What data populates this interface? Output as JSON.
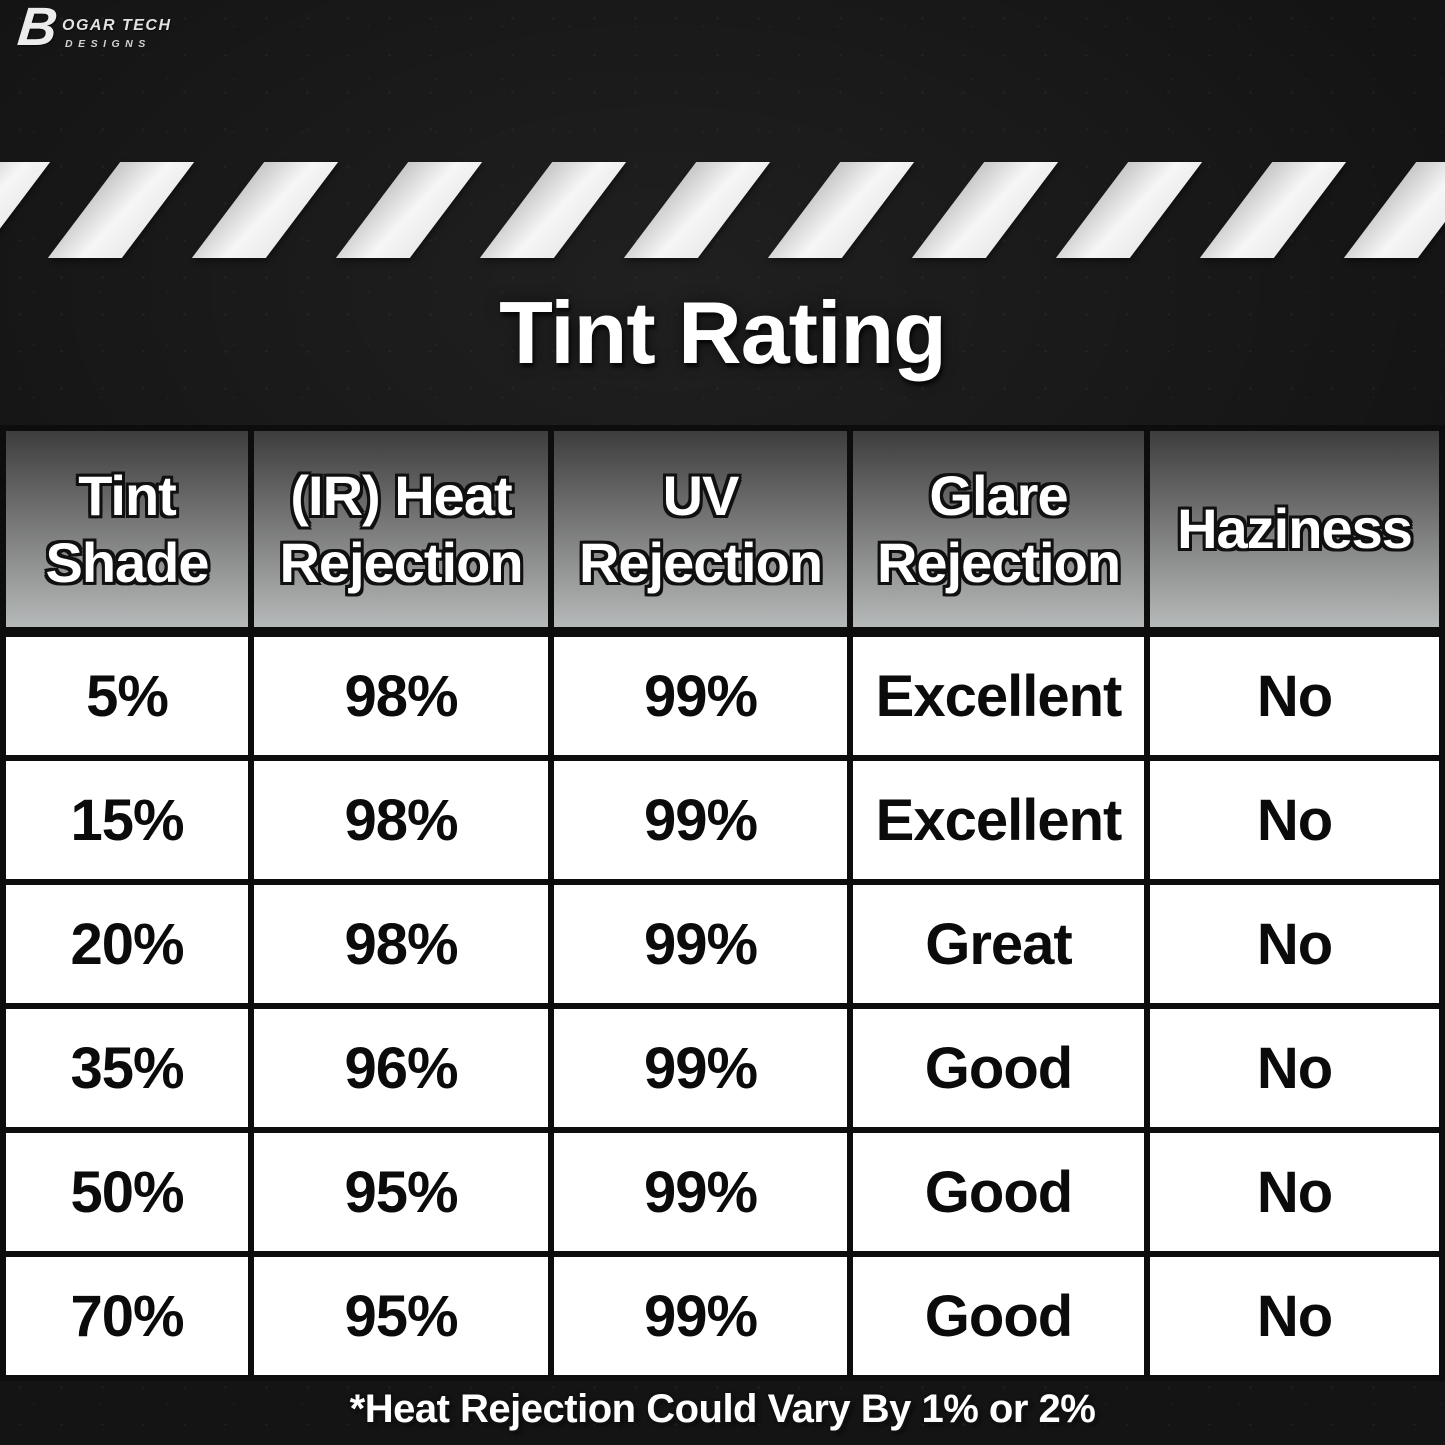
{
  "brand": {
    "b_glyph": "B",
    "name_line1": "OGAR TECH",
    "name_line2": "DESIGNS"
  },
  "chart_data": {
    "type": "table",
    "title": "Tint Rating",
    "columns": [
      "Tint Shade",
      "(IR) Heat Rejection",
      "UV Rejection",
      "Glare Rejection",
      "Haziness"
    ],
    "rows": [
      [
        "5%",
        "98%",
        "99%",
        "Excellent",
        "No"
      ],
      [
        "15%",
        "98%",
        "99%",
        "Excellent",
        "No"
      ],
      [
        "20%",
        "98%",
        "99%",
        "Great",
        "No"
      ],
      [
        "35%",
        "96%",
        "99%",
        "Good",
        "No"
      ],
      [
        "50%",
        "95%",
        "99%",
        "Good",
        "No"
      ],
      [
        "70%",
        "95%",
        "99%",
        "Good",
        "No"
      ]
    ],
    "footnote": "*Heat Rejection Could Vary By 1% or 2%"
  },
  "colors": {
    "background": "#141414",
    "stripe_light": "#f6f6f6",
    "stripe_dark": "#c7c7c7",
    "header_gradient_top": "#3d3d3d",
    "header_gradient_bottom": "#b6b9b9",
    "cell_background": "#ffffff",
    "text_dark": "#0b0b0b",
    "text_light": "#ffffff",
    "border": "#0d0d0d"
  }
}
